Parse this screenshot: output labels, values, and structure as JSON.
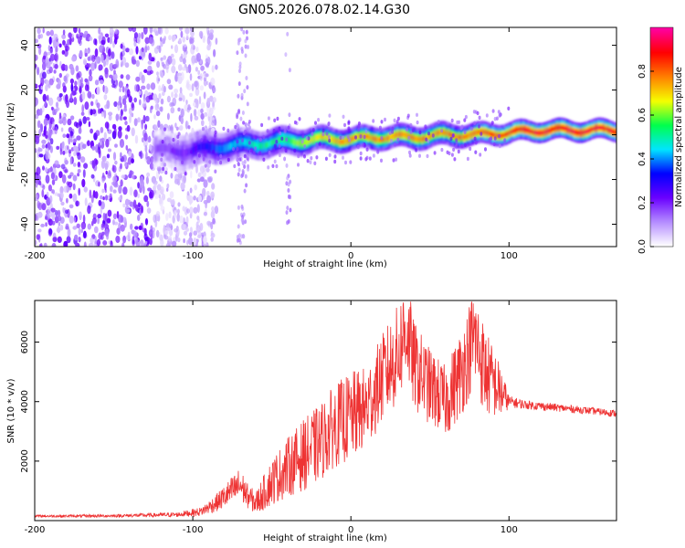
{
  "page": {
    "title": "GN05.2026.078.02.14.G30"
  },
  "chart_data": [
    {
      "type": "heatmap",
      "title": "GN05.2026.078.02.14.G30",
      "xlabel": "Height of straight line (km)",
      "ylabel": "Frequency (Hz)",
      "xlim": [
        -200,
        168
      ],
      "ylim": [
        -50,
        48
      ],
      "x_ticks": [
        -200,
        -100,
        0,
        100
      ],
      "y_ticks": [
        -40,
        -20,
        0,
        20,
        40
      ],
      "colorbar": {
        "label": "Normalized spectral amplitude",
        "range": [
          0,
          1
        ],
        "ticks": [
          0.0,
          0.2,
          0.4,
          0.6,
          0.8
        ],
        "tick_labels": [
          "0.0",
          "0.2",
          "0.4",
          "0.6",
          "0.8"
        ],
        "colors": [
          "#ffffff",
          "#b48cff",
          "#6a00ff",
          "#0000ff",
          "#00e5ff",
          "#00ff4c",
          "#f5ff00",
          "#ff8000",
          "#ff0000",
          "#ff00a0"
        ]
      },
      "ridge": {
        "description_points_x": [
          -120,
          -100,
          -80,
          -60,
          -40,
          -20,
          0,
          20,
          40,
          60,
          80,
          100,
          120,
          140,
          168
        ],
        "description_points_y": [
          -7,
          -7,
          -5,
          -4,
          -3,
          -2,
          -2,
          -1,
          -1,
          0,
          0,
          1,
          2,
          2,
          2
        ],
        "amplitude": [
          0.15,
          0.25,
          0.4,
          0.5,
          0.55,
          0.7,
          0.75,
          0.75,
          0.75,
          0.75,
          0.8,
          0.85,
          0.9,
          0.9,
          0.9
        ]
      },
      "noise_region_x": [
        -200,
        -95
      ],
      "grid": false
    },
    {
      "type": "line",
      "xlabel": "Height of straight line (km)",
      "ylabel": "SNR (10 * v/v)",
      "xlim": [
        -200,
        168
      ],
      "ylim": [
        0,
        7400
      ],
      "x_ticks": [
        -200,
        -100,
        0,
        100
      ],
      "y_ticks": [
        2000,
        4000,
        6000
      ],
      "series": [
        {
          "color": "#ee3333",
          "x": [
            -200,
            -150,
            -110,
            -95,
            -85,
            -70,
            -65,
            -60,
            -50,
            -40,
            -30,
            -20,
            -10,
            0,
            10,
            20,
            30,
            35,
            40,
            50,
            60,
            70,
            78,
            85,
            95,
            100,
            110,
            130,
            150,
            168
          ],
          "y": [
            150,
            160,
            200,
            300,
            600,
            1200,
            800,
            600,
            1300,
            1800,
            2200,
            2600,
            3200,
            3500,
            3800,
            4800,
            5600,
            6500,
            5200,
            4500,
            4000,
            5000,
            6200,
            5000,
            4300,
            4000,
            3900,
            3800,
            3700,
            3600
          ],
          "spread": [
            40,
            50,
            80,
            150,
            300,
            600,
            400,
            400,
            800,
            1000,
            1200,
            1300,
            1400,
            1500,
            1400,
            1500,
            1700,
            1800,
            1500,
            1300,
            1200,
            1500,
            1700,
            1500,
            900,
            200,
            150,
            130,
            120,
            120
          ]
        }
      ],
      "grid": false
    }
  ]
}
